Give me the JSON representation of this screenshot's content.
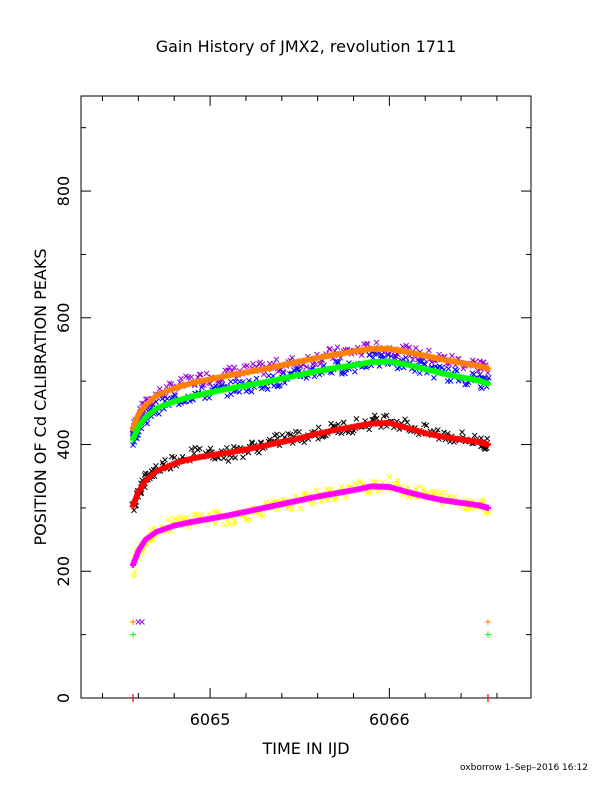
{
  "chart_data": {
    "type": "scatter",
    "title": "Gain History of JMX2, revolution 1711",
    "xlabel": "TIME IN IJD",
    "ylabel": "POSITION OF Cd CALIBRATION PEAKS",
    "xlim": [
      6064.28,
      6066.79
    ],
    "ylim": [
      0,
      950
    ],
    "x_ticks": [
      6065,
      6066
    ],
    "y_ticks": [
      0,
      200,
      400,
      600,
      800
    ],
    "grid": false,
    "footer": "oxborrow  1–Sep–2016 16:12",
    "series": [
      {
        "kind": "scatter",
        "color": "#9400d3",
        "points": [
          [
            6064.57,
            420
          ],
          [
            6064.6,
            445
          ],
          [
            6064.64,
            460
          ],
          [
            6064.7,
            478
          ],
          [
            6064.8,
            490
          ],
          [
            6064.9,
            500
          ],
          [
            6065.0,
            506
          ],
          [
            6065.1,
            512
          ],
          [
            6065.2,
            515
          ],
          [
            6065.3,
            520
          ],
          [
            6065.4,
            525
          ],
          [
            6065.5,
            530
          ],
          [
            6065.6,
            537
          ],
          [
            6065.7,
            543
          ],
          [
            6065.8,
            547
          ],
          [
            6065.9,
            551
          ],
          [
            6066.0,
            549
          ],
          [
            6066.1,
            545
          ],
          [
            6066.2,
            540
          ],
          [
            6066.3,
            534
          ],
          [
            6066.4,
            530
          ],
          [
            6066.5,
            525
          ],
          [
            6066.55,
            522
          ]
        ]
      },
      {
        "kind": "scatter",
        "color": "#0000ff",
        "points": [
          [
            6064.57,
            405
          ],
          [
            6064.6,
            428
          ],
          [
            6064.64,
            442
          ],
          [
            6064.7,
            458
          ],
          [
            6064.8,
            470
          ],
          [
            6064.9,
            478
          ],
          [
            6065.0,
            482
          ],
          [
            6065.1,
            488
          ],
          [
            6065.2,
            493
          ],
          [
            6065.3,
            497
          ],
          [
            6065.4,
            503
          ],
          [
            6065.5,
            510
          ],
          [
            6065.6,
            517
          ],
          [
            6065.7,
            521
          ],
          [
            6065.8,
            524
          ],
          [
            6065.9,
            532
          ],
          [
            6066.0,
            533
          ],
          [
            6066.1,
            527
          ],
          [
            6066.2,
            520
          ],
          [
            6066.3,
            512
          ],
          [
            6066.4,
            506
          ],
          [
            6066.5,
            502
          ],
          [
            6066.55,
            495
          ]
        ]
      },
      {
        "kind": "scatter",
        "color": "#000000",
        "points": [
          [
            6064.57,
            300
          ],
          [
            6064.6,
            325
          ],
          [
            6064.64,
            345
          ],
          [
            6064.7,
            362
          ],
          [
            6064.8,
            375
          ],
          [
            6064.9,
            385
          ],
          [
            6065.0,
            388
          ],
          [
            6065.1,
            385
          ],
          [
            6065.2,
            392
          ],
          [
            6065.3,
            400
          ],
          [
            6065.4,
            408
          ],
          [
            6065.5,
            412
          ],
          [
            6065.6,
            418
          ],
          [
            6065.7,
            425
          ],
          [
            6065.8,
            430
          ],
          [
            6065.9,
            435
          ],
          [
            6066.0,
            440
          ],
          [
            6066.1,
            430
          ],
          [
            6066.2,
            420
          ],
          [
            6066.3,
            415
          ],
          [
            6066.4,
            410
          ],
          [
            6066.5,
            405
          ],
          [
            6066.55,
            400
          ]
        ]
      },
      {
        "kind": "scatter",
        "color": "#ffff00",
        "points": [
          [
            6064.57,
            200
          ],
          [
            6064.6,
            232
          ],
          [
            6064.64,
            250
          ],
          [
            6064.7,
            265
          ],
          [
            6064.8,
            275
          ],
          [
            6064.9,
            282
          ],
          [
            6065.0,
            285
          ],
          [
            6065.1,
            283
          ],
          [
            6065.2,
            290
          ],
          [
            6065.3,
            298
          ],
          [
            6065.4,
            303
          ],
          [
            6065.5,
            310
          ],
          [
            6065.6,
            318
          ],
          [
            6065.7,
            322
          ],
          [
            6065.8,
            330
          ],
          [
            6065.9,
            336
          ],
          [
            6066.0,
            338
          ],
          [
            6066.1,
            328
          ],
          [
            6066.2,
            322
          ],
          [
            6066.3,
            315
          ],
          [
            6066.4,
            310
          ],
          [
            6066.5,
            305
          ],
          [
            6066.55,
            300
          ]
        ]
      },
      {
        "kind": "curve",
        "color": "#ff8000",
        "points": [
          [
            6064.57,
            425
          ],
          [
            6064.6,
            447
          ],
          [
            6064.64,
            462
          ],
          [
            6064.7,
            477
          ],
          [
            6064.8,
            489
          ],
          [
            6064.9,
            497
          ],
          [
            6065.0,
            503
          ],
          [
            6065.1,
            509
          ],
          [
            6065.2,
            514
          ],
          [
            6065.3,
            519
          ],
          [
            6065.4,
            525
          ],
          [
            6065.5,
            531
          ],
          [
            6065.6,
            537
          ],
          [
            6065.7,
            542
          ],
          [
            6065.8,
            547
          ],
          [
            6065.9,
            551
          ],
          [
            6066.0,
            551
          ],
          [
            6066.1,
            546
          ],
          [
            6066.2,
            540
          ],
          [
            6066.3,
            534
          ],
          [
            6066.4,
            529
          ],
          [
            6066.5,
            524
          ],
          [
            6066.55,
            520
          ]
        ]
      },
      {
        "kind": "curve",
        "color": "#00ff00",
        "points": [
          [
            6064.57,
            408
          ],
          [
            6064.6,
            428
          ],
          [
            6064.64,
            443
          ],
          [
            6064.7,
            457
          ],
          [
            6064.8,
            468
          ],
          [
            6064.9,
            476
          ],
          [
            6065.0,
            482
          ],
          [
            6065.1,
            488
          ],
          [
            6065.2,
            493
          ],
          [
            6065.3,
            498
          ],
          [
            6065.4,
            504
          ],
          [
            6065.5,
            510
          ],
          [
            6065.6,
            516
          ],
          [
            6065.7,
            521
          ],
          [
            6065.8,
            525
          ],
          [
            6065.9,
            530
          ],
          [
            6066.0,
            531
          ],
          [
            6066.1,
            526
          ],
          [
            6066.2,
            519
          ],
          [
            6066.3,
            512
          ],
          [
            6066.4,
            506
          ],
          [
            6066.5,
            501
          ],
          [
            6066.55,
            496
          ]
        ]
      },
      {
        "kind": "curve",
        "color": "#ff0000",
        "points": [
          [
            6064.57,
            303
          ],
          [
            6064.6,
            325
          ],
          [
            6064.64,
            343
          ],
          [
            6064.7,
            358
          ],
          [
            6064.8,
            370
          ],
          [
            6064.9,
            378
          ],
          [
            6065.0,
            383
          ],
          [
            6065.1,
            387
          ],
          [
            6065.2,
            392
          ],
          [
            6065.3,
            398
          ],
          [
            6065.4,
            404
          ],
          [
            6065.5,
            410
          ],
          [
            6065.6,
            417
          ],
          [
            6065.7,
            423
          ],
          [
            6065.8,
            428
          ],
          [
            6065.9,
            433
          ],
          [
            6066.0,
            434
          ],
          [
            6066.1,
            426
          ],
          [
            6066.2,
            418
          ],
          [
            6066.3,
            412
          ],
          [
            6066.4,
            408
          ],
          [
            6066.5,
            404
          ],
          [
            6066.55,
            400
          ]
        ]
      },
      {
        "kind": "curve",
        "color": "#ff00ff",
        "points": [
          [
            6064.57,
            210
          ],
          [
            6064.6,
            232
          ],
          [
            6064.64,
            250
          ],
          [
            6064.7,
            262
          ],
          [
            6064.8,
            272
          ],
          [
            6064.9,
            278
          ],
          [
            6065.0,
            283
          ],
          [
            6065.1,
            288
          ],
          [
            6065.2,
            294
          ],
          [
            6065.3,
            300
          ],
          [
            6065.4,
            306
          ],
          [
            6065.5,
            312
          ],
          [
            6065.6,
            318
          ],
          [
            6065.7,
            323
          ],
          [
            6065.8,
            328
          ],
          [
            6065.9,
            334
          ],
          [
            6066.0,
            333
          ],
          [
            6066.1,
            325
          ],
          [
            6066.2,
            318
          ],
          [
            6066.3,
            312
          ],
          [
            6066.4,
            308
          ],
          [
            6066.5,
            304
          ],
          [
            6066.55,
            300
          ]
        ]
      },
      {
        "kind": "plus",
        "color": "#ff8000",
        "points": [
          [
            6064.57,
            120
          ],
          [
            6066.55,
            120
          ]
        ]
      },
      {
        "kind": "plus",
        "color": "#00ff00",
        "points": [
          [
            6064.57,
            100
          ],
          [
            6066.55,
            100
          ]
        ]
      },
      {
        "kind": "cross",
        "color": "#9400d3",
        "points": [
          [
            6064.6,
            120
          ],
          [
            6064.62,
            120
          ]
        ]
      }
    ]
  }
}
